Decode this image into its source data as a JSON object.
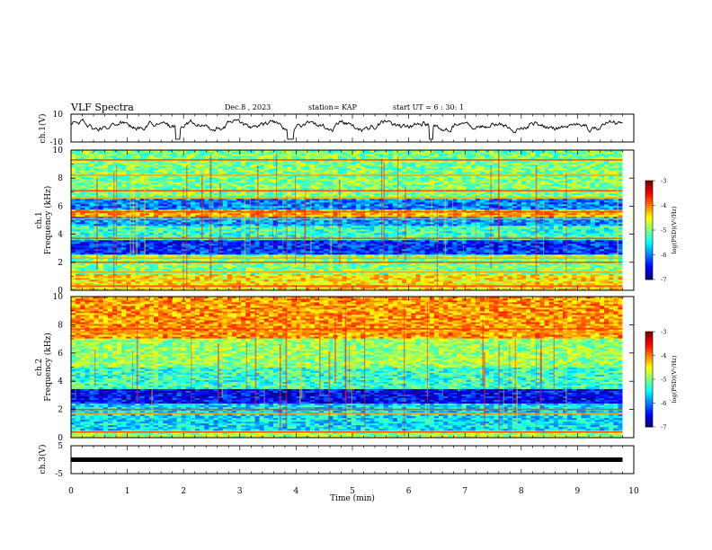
{
  "header": {
    "title": "VLF Spectra",
    "date": "Dec.8 , 2023",
    "station": "station= KAP",
    "start": "start UT = 6 : 30: 1"
  },
  "chart_data": [
    {
      "type": "line",
      "panel": "ch1-waveform",
      "ylabel": "ch.1(V)",
      "ylim": [
        -10,
        10
      ],
      "yticks": [
        "10",
        "-10"
      ],
      "xlim": [
        0,
        10
      ],
      "note": "noisy waveform, mostly between about -3 and 6 V, dips near 1.9, 3.9, 6.4 min"
    },
    {
      "type": "heatmap",
      "panel": "ch1-spectrogram",
      "ylabel": "ch.1 Frequency (kHz)",
      "ylim": [
        0,
        10
      ],
      "yticks": [
        "0",
        "2",
        "4",
        "6",
        "8",
        "10"
      ],
      "xlim": [
        0,
        10
      ],
      "data_end_min": 9.8,
      "colorbar": {
        "label": "log(PSD)(V²/Hz)",
        "ticks": [
          "-3",
          "-4",
          "-5",
          "-6",
          "-7"
        ],
        "range": [
          -7,
          -3
        ]
      },
      "bands_khz": [
        {
          "from": 0.0,
          "to": 1.2,
          "level": -4.4
        },
        {
          "from": 1.2,
          "to": 2.6,
          "level": -5.0
        },
        {
          "from": 2.6,
          "to": 3.6,
          "level": -6.3
        },
        {
          "from": 3.6,
          "to": 4.6,
          "level": -5.3
        },
        {
          "from": 4.6,
          "to": 5.3,
          "level": -5.9
        },
        {
          "from": 5.3,
          "to": 5.8,
          "level": -4.2
        },
        {
          "from": 5.8,
          "to": 6.5,
          "level": -6.0
        },
        {
          "from": 6.5,
          "to": 10.0,
          "level": -5.0
        }
      ],
      "lines_khz": [
        0.3,
        1.3,
        2.0,
        2.3,
        3.7,
        5.1,
        5.6,
        6.6,
        7.1,
        8.2,
        9.3
      ]
    },
    {
      "type": "heatmap",
      "panel": "ch2-spectrogram",
      "ylabel": "ch.2 Frequency (kHz)",
      "ylim": [
        0,
        10
      ],
      "yticks": [
        "0",
        "2",
        "4",
        "6",
        "8",
        "10"
      ],
      "xlim": [
        0,
        10
      ],
      "data_end_min": 9.8,
      "colorbar": {
        "label": "log(PSD)(V²/Hz)",
        "ticks": [
          "-3",
          "-4",
          "-5",
          "-6",
          "-7"
        ],
        "range": [
          -7,
          -3
        ]
      },
      "bands_khz": [
        {
          "from": 0.0,
          "to": 0.5,
          "level": -4.8
        },
        {
          "from": 0.5,
          "to": 2.4,
          "level": -5.6
        },
        {
          "from": 2.4,
          "to": 3.4,
          "level": -6.5
        },
        {
          "from": 3.4,
          "to": 5.0,
          "level": -5.3
        },
        {
          "from": 5.0,
          "to": 7.0,
          "level": -4.9
        },
        {
          "from": 7.0,
          "to": 10.0,
          "level": -4.1
        }
      ],
      "lines_khz": [
        0.4,
        1.7,
        2.0,
        7.5,
        7.7
      ]
    },
    {
      "type": "line",
      "panel": "ch3-waveform",
      "ylabel": "ch.3(V)",
      "ylim": [
        -5,
        5
      ],
      "yticks": [
        "5",
        "-5"
      ],
      "xlim": [
        0,
        10
      ],
      "xlabel": "Time (min)",
      "xticks": [
        "0",
        "1",
        "2",
        "3",
        "4",
        "5",
        "6",
        "7",
        "8",
        "9",
        "10"
      ],
      "note": "constant thick band near 0 V from 0 to 9.8 min"
    }
  ]
}
